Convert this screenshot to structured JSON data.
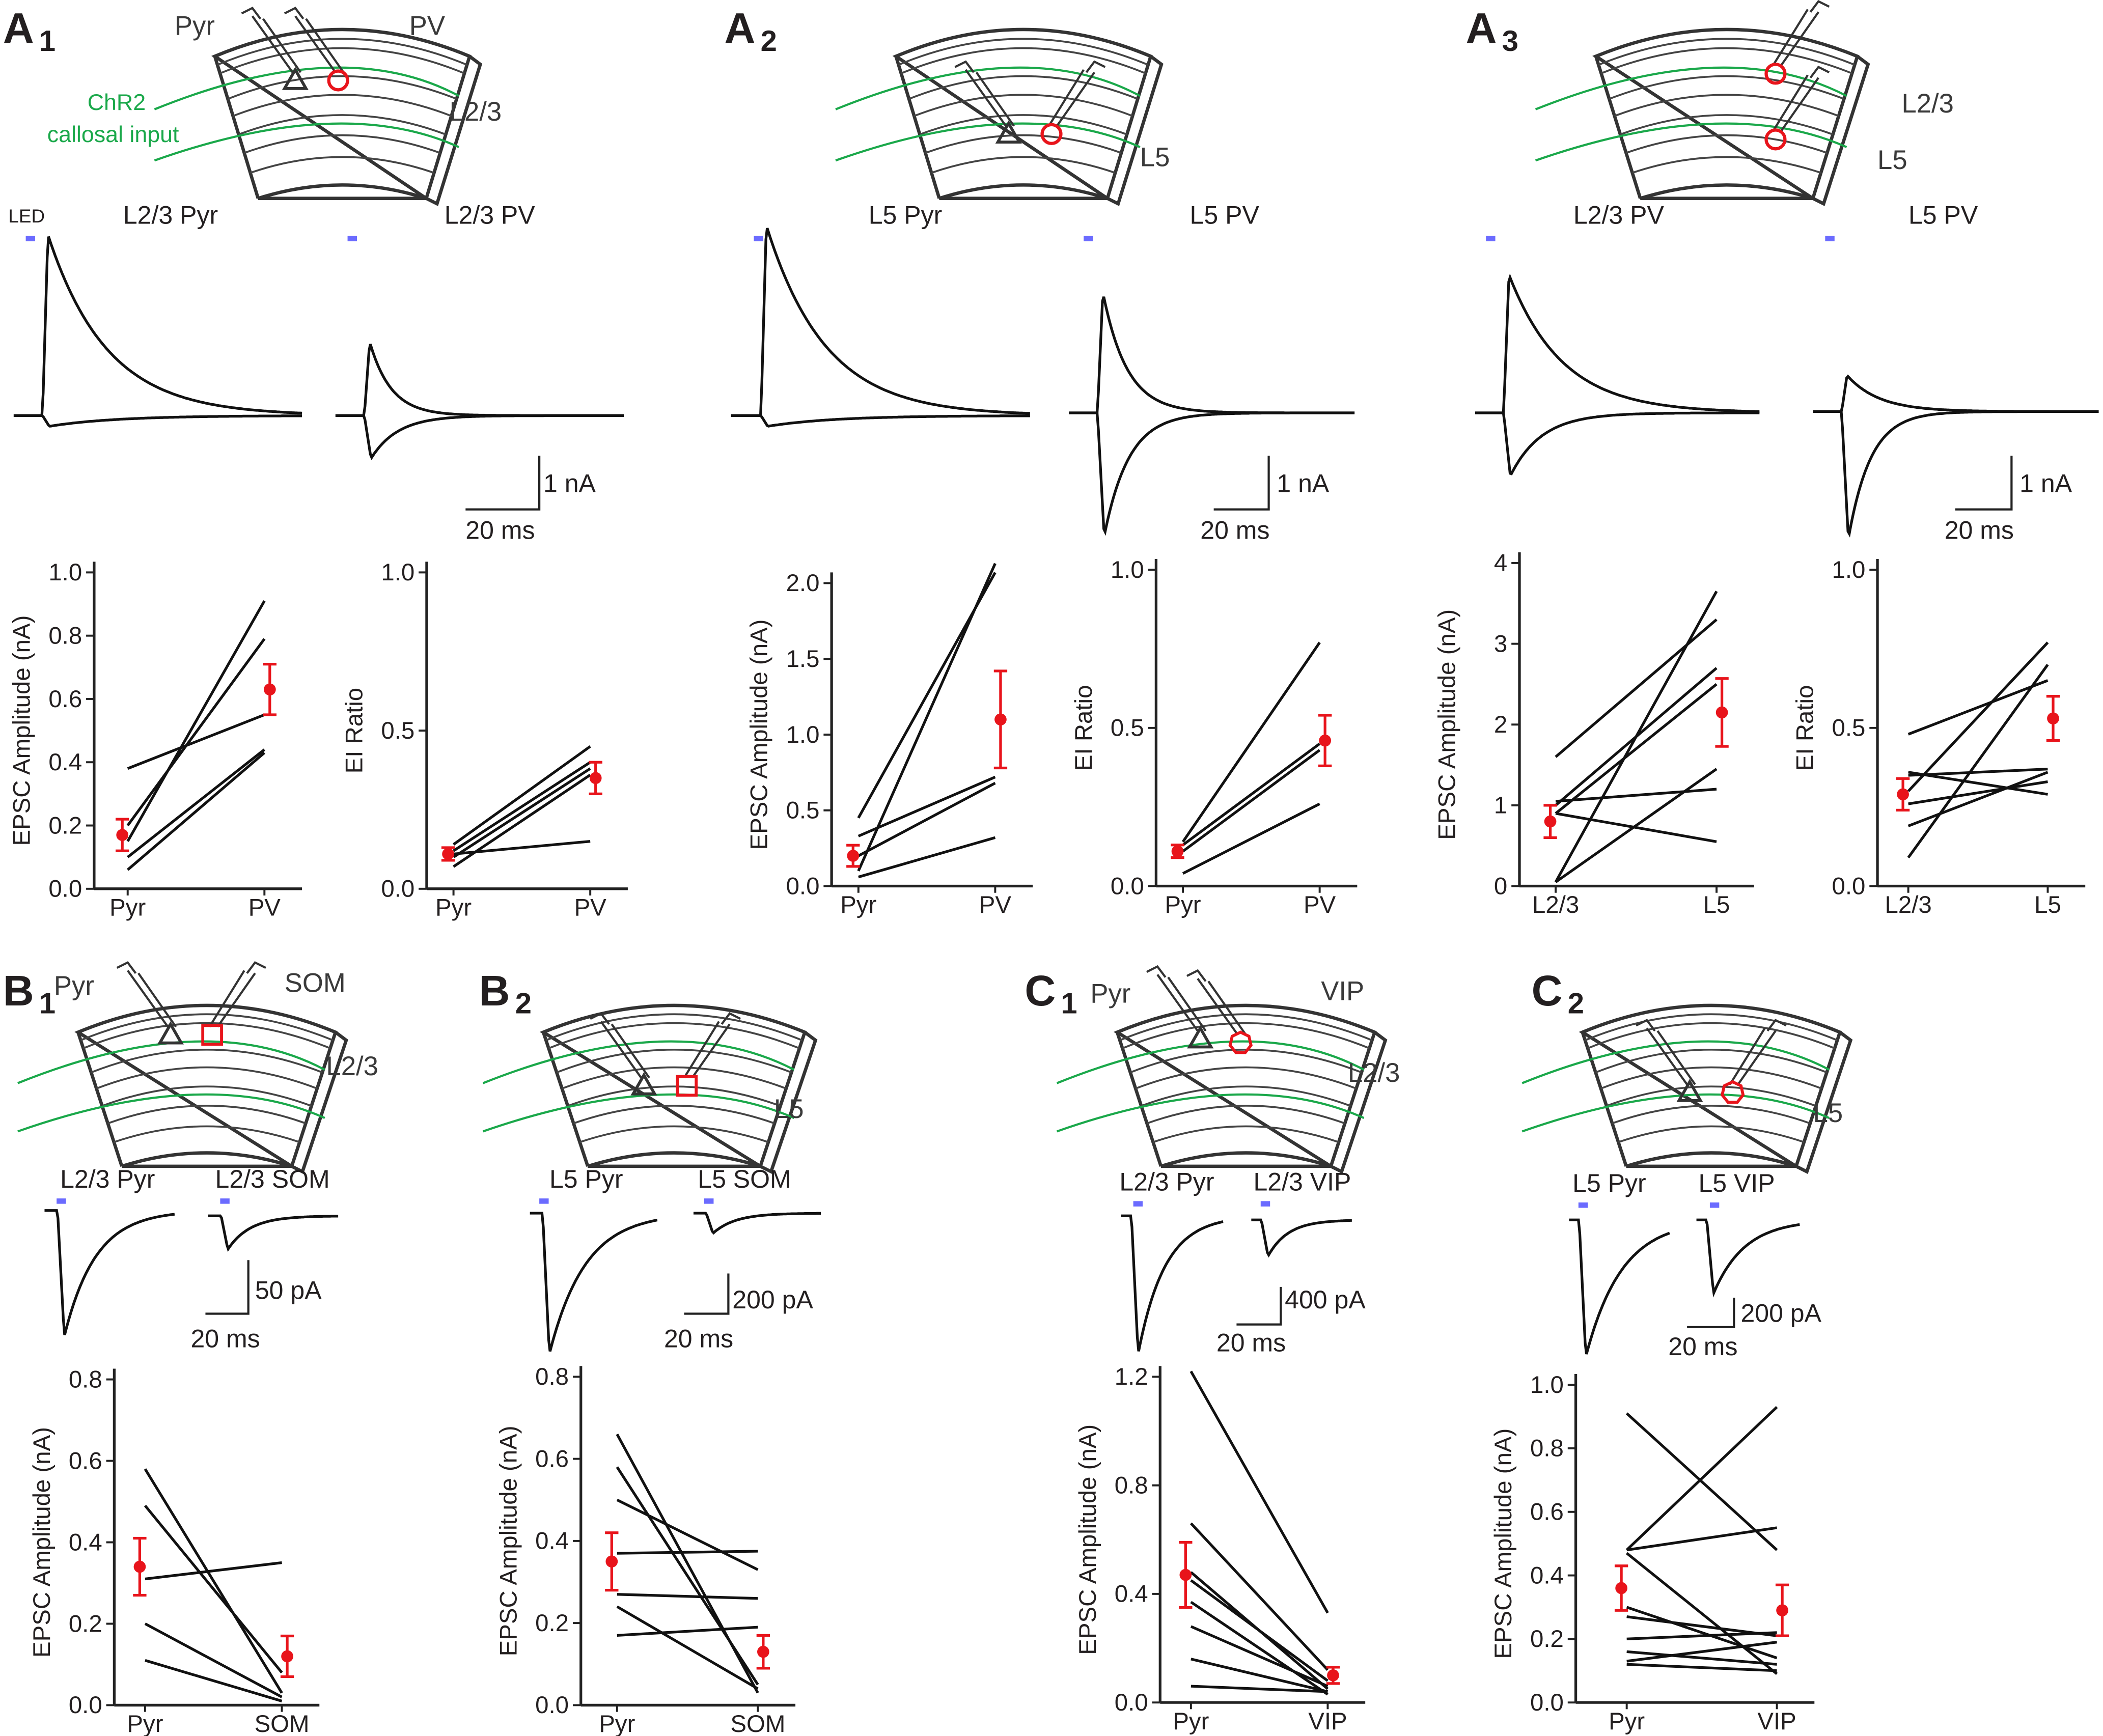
{
  "colors": {
    "led": "#6b6bff",
    "mean": "#e8141b",
    "chr2": "#1aa84a",
    "cell_target": "#e8141b",
    "trace": "#111111"
  },
  "panels": [
    {
      "label": "A",
      "sub": "1",
      "led_label": "LED",
      "diagram_labels": [
        "Pyr",
        "PV",
        "L2/3",
        "ChR2",
        "callosal input"
      ],
      "traces": [
        {
          "title": "L2/3 Pyr"
        },
        {
          "title": "L2/3 PV"
        }
      ],
      "scalebar": {
        "amp": "1 nA",
        "time": "20 ms"
      }
    },
    {
      "label": "A",
      "sub": "2",
      "diagram_labels": [
        "L5"
      ],
      "traces": [
        {
          "title": "L5 Pyr"
        },
        {
          "title": "L5 PV"
        }
      ],
      "scalebar": {
        "amp": "1 nA",
        "time": "20 ms"
      }
    },
    {
      "label": "A",
      "sub": "3",
      "diagram_labels": [
        "L2/3",
        "L5"
      ],
      "traces": [
        {
          "title": "L2/3 PV"
        },
        {
          "title": "L5 PV"
        }
      ],
      "scalebar": {
        "amp": "1 nA",
        "time": "20 ms"
      }
    },
    {
      "label": "B",
      "sub": "1",
      "diagram_labels": [
        "Pyr",
        "SOM",
        "L2/3"
      ],
      "traces": [
        {
          "title": "L2/3 Pyr"
        },
        {
          "title": "L2/3 SOM"
        }
      ],
      "scalebar": {
        "amp": "50 pA",
        "time": "20 ms"
      }
    },
    {
      "label": "B",
      "sub": "2",
      "diagram_labels": [
        "L5"
      ],
      "traces": [
        {
          "title": "L5 Pyr"
        },
        {
          "title": "L5 SOM"
        }
      ],
      "scalebar": {
        "amp": "200 pA",
        "time": "20 ms"
      }
    },
    {
      "label": "C",
      "sub": "1",
      "diagram_labels": [
        "Pyr",
        "VIP",
        "L2/3"
      ],
      "traces": [
        {
          "title": "L2/3 Pyr"
        },
        {
          "title": "L2/3 VIP"
        }
      ],
      "scalebar": {
        "amp": "400 pA",
        "time": "20 ms"
      }
    },
    {
      "label": "C",
      "sub": "2",
      "diagram_labels": [
        "L5"
      ],
      "traces": [
        {
          "title": "L5 Pyr"
        },
        {
          "title": "L5 VIP"
        }
      ],
      "scalebar": {
        "amp": "200 pA",
        "time": "20 ms"
      }
    }
  ],
  "chart_data": [
    {
      "panel": "A1",
      "type": "line",
      "ylabel": "EPSC Amplitude (nA)",
      "categories": [
        "Pyr",
        "PV"
      ],
      "ylim": [
        0,
        1.0
      ],
      "yticks": [
        0,
        0.2,
        0.4,
        0.6,
        0.8,
        1.0
      ],
      "yticklabels": [
        "0.0",
        "0.2",
        "0.4",
        "0.6",
        "0.8",
        "1.0"
      ],
      "pairs": [
        [
          0.38,
          0.55
        ],
        [
          0.15,
          0.91
        ],
        [
          0.2,
          0.79
        ],
        [
          0.1,
          0.44
        ],
        [
          0.06,
          0.43
        ]
      ],
      "mean": [
        0.17,
        0.63
      ],
      "err": [
        0.05,
        0.08
      ]
    },
    {
      "panel": "A1",
      "type": "line",
      "ylabel": "EI Ratio",
      "categories": [
        "Pyr",
        "PV"
      ],
      "ylim": [
        0,
        1.0
      ],
      "yticks": [
        0,
        0.5,
        1.0
      ],
      "yticklabels": [
        "0.0",
        "0.5",
        "1.0"
      ],
      "pairs": [
        [
          0.14,
          0.45
        ],
        [
          0.12,
          0.4
        ],
        [
          0.1,
          0.38
        ],
        [
          0.11,
          0.15
        ],
        [
          0.07,
          0.36
        ]
      ],
      "mean": [
        0.11,
        0.35
      ],
      "err": [
        0.02,
        0.05
      ]
    },
    {
      "panel": "A2",
      "type": "line",
      "ylabel": "EPSC Amplitude (nA)",
      "categories": [
        "Pyr",
        "PV"
      ],
      "ylim": [
        0,
        2.0
      ],
      "yticks": [
        0,
        0.5,
        1.0,
        1.5,
        2.0
      ],
      "yticklabels": [
        "0.0",
        "0.5",
        "1.0",
        "1.5",
        "2.0"
      ],
      "pairs": [
        [
          0.45,
          2.07
        ],
        [
          0.1,
          2.13
        ],
        [
          0.33,
          0.72
        ],
        [
          0.2,
          0.68
        ],
        [
          0.06,
          0.32
        ]
      ],
      "mean": [
        0.2,
        1.1
      ],
      "err": [
        0.07,
        0.32
      ]
    },
    {
      "panel": "A2",
      "type": "line",
      "ylabel": "EI Ratio",
      "categories": [
        "Pyr",
        "PV"
      ],
      "ylim": [
        0,
        1.0
      ],
      "yticks": [
        0,
        0.5,
        1.0
      ],
      "yticklabels": [
        "0.0",
        "0.5",
        "1.0"
      ],
      "pairs": [
        [
          0.14,
          0.77
        ],
        [
          0.13,
          0.45
        ],
        [
          0.11,
          0.43
        ],
        [
          0.04,
          0.26
        ]
      ],
      "mean": [
        0.11,
        0.46
      ],
      "err": [
        0.02,
        0.08
      ]
    },
    {
      "panel": "A3",
      "type": "line",
      "ylabel": "EPSC Amplitude (nA)",
      "categories": [
        "L2/3",
        "L5"
      ],
      "ylim": [
        0,
        4
      ],
      "yticks": [
        0,
        1,
        2,
        3,
        4
      ],
      "yticklabels": [
        "0",
        "1",
        "2",
        "3",
        "4"
      ],
      "pairs": [
        [
          1.6,
          3.3
        ],
        [
          0.05,
          3.65
        ],
        [
          1.0,
          2.7
        ],
        [
          0.9,
          2.5
        ],
        [
          0.05,
          1.45
        ],
        [
          1.05,
          1.2
        ],
        [
          0.9,
          0.55
        ]
      ],
      "mean": [
        0.8,
        2.15
      ],
      "err": [
        0.2,
        0.42
      ]
    },
    {
      "panel": "A3",
      "type": "line",
      "ylabel": "EI Ratio",
      "categories": [
        "L2/3",
        "L5"
      ],
      "ylim": [
        0,
        1.0
      ],
      "yticks": [
        0,
        0.5,
        1.0
      ],
      "yticklabels": [
        "0.0",
        "0.5",
        "1.0"
      ],
      "pairs": [
        [
          0.48,
          0.65
        ],
        [
          0.09,
          0.7
        ],
        [
          0.3,
          0.77
        ],
        [
          0.35,
          0.37
        ],
        [
          0.19,
          0.36
        ],
        [
          0.26,
          0.33
        ],
        [
          0.36,
          0.29
        ]
      ],
      "mean": [
        0.29,
        0.53
      ],
      "err": [
        0.05,
        0.07
      ]
    },
    {
      "panel": "B1",
      "type": "line",
      "ylabel": "EPSC Amplitude (nA)",
      "categories": [
        "Pyr",
        "SOM"
      ],
      "ylim": [
        0,
        0.8
      ],
      "yticks": [
        0,
        0.2,
        0.4,
        0.6,
        0.8
      ],
      "yticklabels": [
        "0.0",
        "0.2",
        "0.4",
        "0.6",
        "0.8"
      ],
      "pairs": [
        [
          0.58,
          0.03
        ],
        [
          0.49,
          0.08
        ],
        [
          0.31,
          0.35
        ],
        [
          0.2,
          0.02
        ],
        [
          0.11,
          0.01
        ]
      ],
      "mean": [
        0.34,
        0.12
      ],
      "err": [
        0.07,
        0.05
      ]
    },
    {
      "panel": "B2",
      "type": "line",
      "ylabel": "EPSC Amplitude (nA)",
      "categories": [
        "Pyr",
        "SOM"
      ],
      "ylim": [
        0,
        0.8
      ],
      "yticks": [
        0,
        0.2,
        0.4,
        0.6,
        0.8
      ],
      "yticklabels": [
        "0.0",
        "0.2",
        "0.4",
        "0.6",
        "0.8"
      ],
      "pairs": [
        [
          0.66,
          0.03
        ],
        [
          0.58,
          0.05
        ],
        [
          0.5,
          0.33
        ],
        [
          0.37,
          0.375
        ],
        [
          0.27,
          0.26
        ],
        [
          0.24,
          0.04
        ],
        [
          0.17,
          0.19
        ]
      ],
      "mean": [
        0.35,
        0.13
      ],
      "err": [
        0.07,
        0.04
      ]
    },
    {
      "panel": "C1",
      "type": "line",
      "ylabel": "EPSC Amplitude (nA)",
      "categories": [
        "Pyr",
        "VIP"
      ],
      "ylim": [
        0,
        1.2
      ],
      "yticks": [
        0,
        0.4,
        0.8,
        1.2
      ],
      "yticklabels": [
        "0.0",
        "0.4",
        "0.8",
        "1.2"
      ],
      "pairs": [
        [
          1.22,
          0.33
        ],
        [
          0.66,
          0.12
        ],
        [
          0.48,
          0.05
        ],
        [
          0.45,
          0.08
        ],
        [
          0.37,
          0.03
        ],
        [
          0.28,
          0.06
        ],
        [
          0.16,
          0.04
        ],
        [
          0.06,
          0.04
        ]
      ],
      "mean": [
        0.47,
        0.1
      ],
      "err": [
        0.12,
        0.03
      ]
    },
    {
      "panel": "C2",
      "type": "line",
      "ylabel": "EPSC Amplitude (nA)",
      "categories": [
        "Pyr",
        "VIP"
      ],
      "ylim": [
        0,
        1.0
      ],
      "yticks": [
        0,
        0.2,
        0.4,
        0.6,
        0.8,
        1.0
      ],
      "yticklabels": [
        "0.0",
        "0.2",
        "0.4",
        "0.6",
        "0.8",
        "1.0"
      ],
      "pairs": [
        [
          0.91,
          0.48
        ],
        [
          0.48,
          0.93
        ],
        [
          0.48,
          0.55
        ],
        [
          0.47,
          0.09
        ],
        [
          0.3,
          0.14
        ],
        [
          0.27,
          0.21
        ],
        [
          0.2,
          0.22
        ],
        [
          0.16,
          0.12
        ],
        [
          0.13,
          0.19
        ],
        [
          0.12,
          0.1
        ]
      ],
      "mean": [
        0.36,
        0.29
      ],
      "err": [
        0.07,
        0.08
      ]
    }
  ]
}
